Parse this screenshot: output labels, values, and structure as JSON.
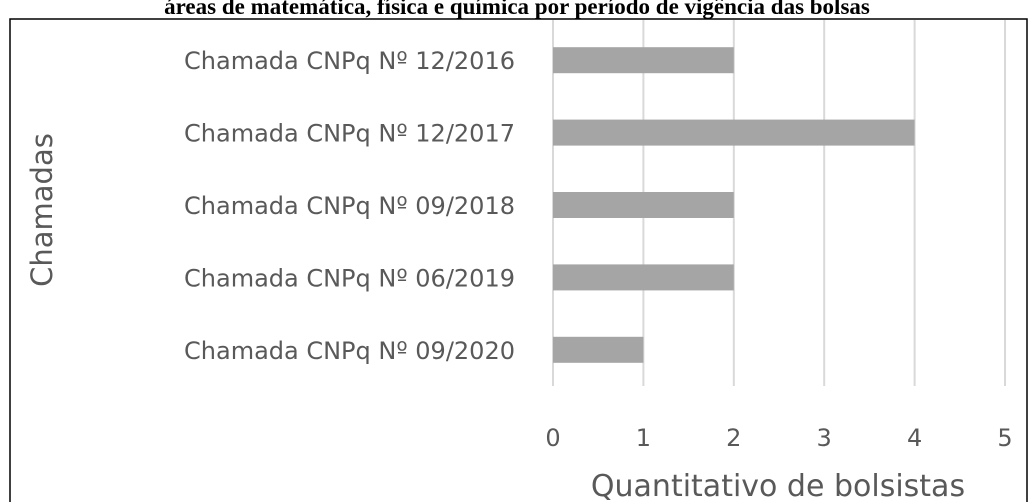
{
  "chart_data": {
    "type": "hbar",
    "title": "áreas de matemática, física e química por período de vigência das bolsas",
    "categories": [
      "Chamada CNPq Nº 12/2016",
      "Chamada CNPq Nº 12/2017",
      "Chamada CNPq Nº 09/2018",
      "Chamada CNPq Nº 06/2019",
      "Chamada CNPq Nº 09/2020"
    ],
    "values": [
      2,
      4,
      2,
      2,
      1
    ],
    "color": "#a5a5a5",
    "xlim": [
      0,
      5
    ],
    "xticks": [
      0,
      1,
      2,
      3,
      4,
      5
    ],
    "xlabel": "Quantitativo de bolsistas",
    "ylabel": "Chamadas",
    "grid": true
  }
}
